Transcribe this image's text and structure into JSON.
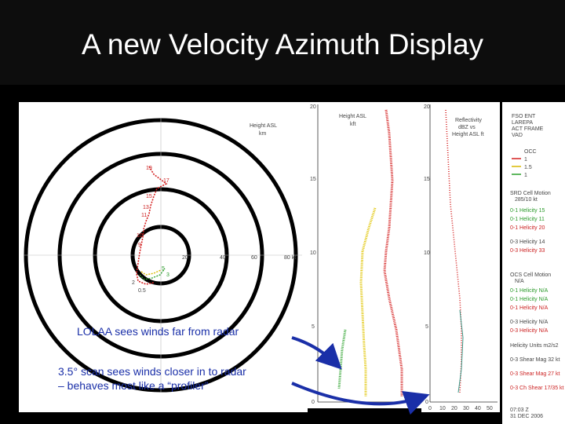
{
  "title": "A new Velocity Azimuth Display",
  "annotations": {
    "lolaa": "LOLAA sees winds far from radar",
    "scan_line1": "3.5° scan sees winds closer in to radar",
    "scan_line2": "– behaves most like a “profiler”"
  },
  "hodograph": {
    "axis_title": [
      "Height ASL",
      "km"
    ],
    "ring_labels": [
      "20",
      "40",
      "60",
      "80 kt"
    ],
    "height_labels": [
      "19",
      "17",
      "15",
      "13",
      "11",
      "10",
      "9",
      "5",
      "3",
      "2",
      "0.5"
    ]
  },
  "profile1": {
    "label": [
      "Height ASL",
      "kft"
    ],
    "y_ticks": [
      "20",
      "15",
      "10",
      "5",
      "0"
    ]
  },
  "profile2": {
    "label": [
      "Reflectivity",
      "dBZ vs",
      "Height ASL ft"
    ],
    "y_ticks": [
      "20",
      "15",
      "10",
      "5",
      "0"
    ],
    "x_ticks": [
      "0",
      "10",
      "20",
      "30",
      "40",
      "50"
    ]
  },
  "legend": {
    "header": [
      "FSO ENT",
      "LAREPA",
      "ACT FRAME",
      "VAD"
    ],
    "occ": [
      "OCC",
      "1",
      "1.5",
      "1"
    ],
    "srh_title": [
      "SRD Cell Motion",
      "285/10 kt"
    ],
    "srh_items": [
      "0-1 Helicity 15",
      "0-1 Helicity 11",
      "0-1 Helicity 20",
      "0-3 Helicity 14",
      "0-3 Helicity 33"
    ],
    "occ_cell_title": [
      "OCS Cell Motion",
      "N/A"
    ],
    "occ_items": [
      "0-1 Helicity N/A",
      "0-1 Helicity N/A",
      "0-1 Helicity N/A",
      "0-3 Helicity N/A",
      "0-3 Helicity N/A"
    ],
    "shear_title": "Helicity Units m2/s2",
    "shear_items": [
      "0-3 Shear Mag 32 kt",
      "0-3 Shear Mag 27 kt",
      "0-3 Ch Shear 17/35 kt"
    ],
    "footer": [
      "07:03 Z",
      "31 DEC 2006"
    ]
  }
}
